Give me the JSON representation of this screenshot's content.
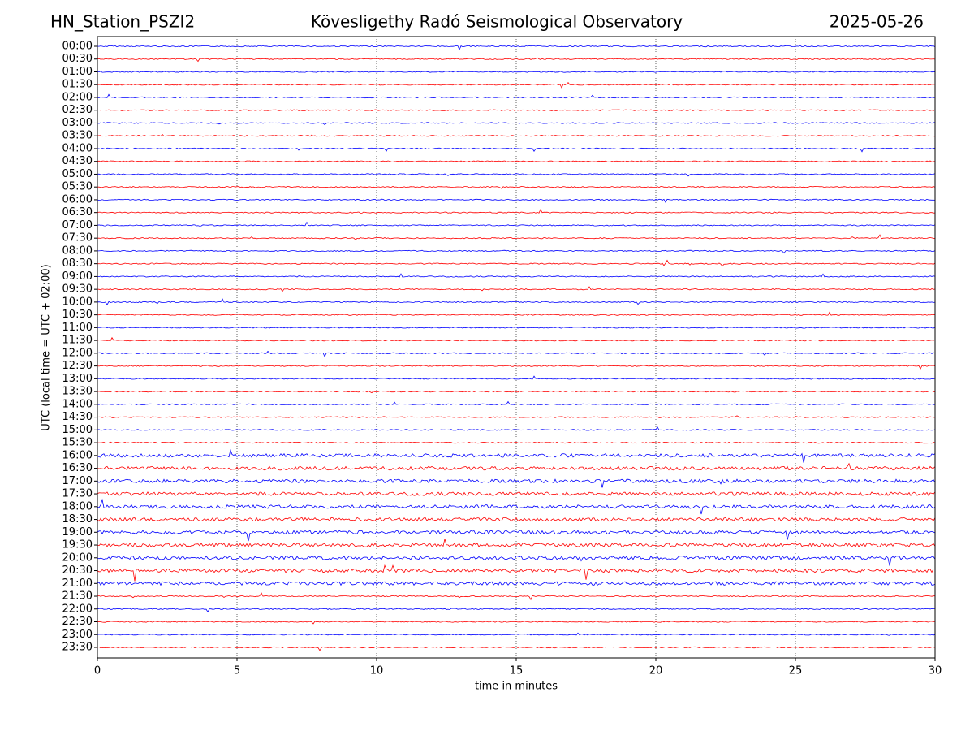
{
  "chart_data": {
    "type": "helicorder",
    "station": "HN_Station_PSZI2",
    "title": "Kövesligethy Radó Seismological Observatory",
    "date": "2025-05-26",
    "xlabel": "time in minutes",
    "ylabel": "UTC (local time = UTC + 02:00)",
    "xlim": [
      0,
      30
    ],
    "xticks": [
      0,
      5,
      10,
      15,
      20,
      25,
      30
    ],
    "grid": true,
    "trace_colors": [
      "#0000ff",
      "#ff0000"
    ],
    "categories": [
      "00:00",
      "00:30",
      "01:00",
      "01:30",
      "02:00",
      "02:30",
      "03:00",
      "03:30",
      "04:00",
      "04:30",
      "05:00",
      "05:30",
      "06:00",
      "06:30",
      "07:00",
      "07:30",
      "08:00",
      "08:30",
      "09:00",
      "09:30",
      "10:00",
      "10:30",
      "11:00",
      "11:30",
      "12:00",
      "12:30",
      "13:00",
      "13:30",
      "14:00",
      "14:30",
      "15:00",
      "15:30",
      "16:00",
      "16:30",
      "17:00",
      "17:30",
      "18:00",
      "18:30",
      "19:00",
      "19:30",
      "20:00",
      "20:30",
      "21:00",
      "21:30",
      "22:00",
      "22:30",
      "23:00",
      "23:30"
    ]
  }
}
